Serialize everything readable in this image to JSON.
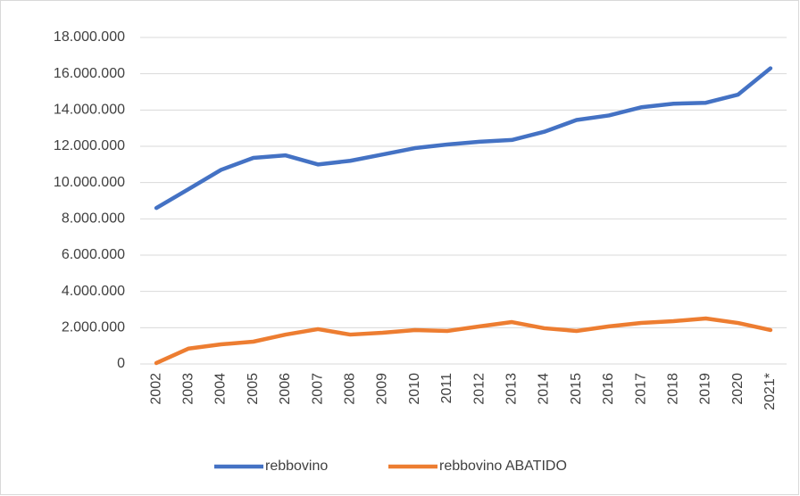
{
  "chart_data": {
    "type": "line",
    "categories": [
      "2002",
      "2003",
      "2004",
      "2005",
      "2006",
      "2007",
      "2008",
      "2009",
      "2010",
      "2011",
      "2012",
      "2013",
      "2014",
      "2015",
      "2016",
      "2017",
      "2018",
      "2019",
      "2020",
      "2021*"
    ],
    "series": [
      {
        "name": "rebbovino",
        "color": "#4472c4",
        "values": [
          8600000,
          9640000,
          10700000,
          11360000,
          11500000,
          11000000,
          11200000,
          11550000,
          11900000,
          12100000,
          12250000,
          12350000,
          12800000,
          13450000,
          13700000,
          14150000,
          14350000,
          14400000,
          14850000,
          16300000
        ]
      },
      {
        "name": "rebbovino ABATIDO",
        "color": "#ed7d31",
        "values": [
          50000,
          850000,
          1080000,
          1230000,
          1620000,
          1920000,
          1620000,
          1720000,
          1870000,
          1820000,
          2070000,
          2310000,
          1970000,
          1820000,
          2070000,
          2260000,
          2360000,
          2510000,
          2260000,
          1870000
        ]
      }
    ],
    "ylim": [
      0,
      18000000
    ],
    "yticks": [
      0,
      {
        "value": 2000000,
        "label": "2.000.000"
      },
      {
        "value": 4000000,
        "label": "4.000.000"
      },
      {
        "value": 6000000,
        "label": "6.000.000"
      },
      {
        "value": 8000000,
        "label": "8.000.000"
      },
      {
        "value": 10000000,
        "label": "10.000.000"
      },
      {
        "value": 12000000,
        "label": "12.000.000"
      },
      {
        "value": 14000000,
        "label": "14.000.000"
      },
      {
        "value": 16000000,
        "label": "16.000.000"
      },
      {
        "value": 18000000,
        "label": "18.000.000"
      }
    ],
    "grid": true,
    "legend": "bottom"
  }
}
